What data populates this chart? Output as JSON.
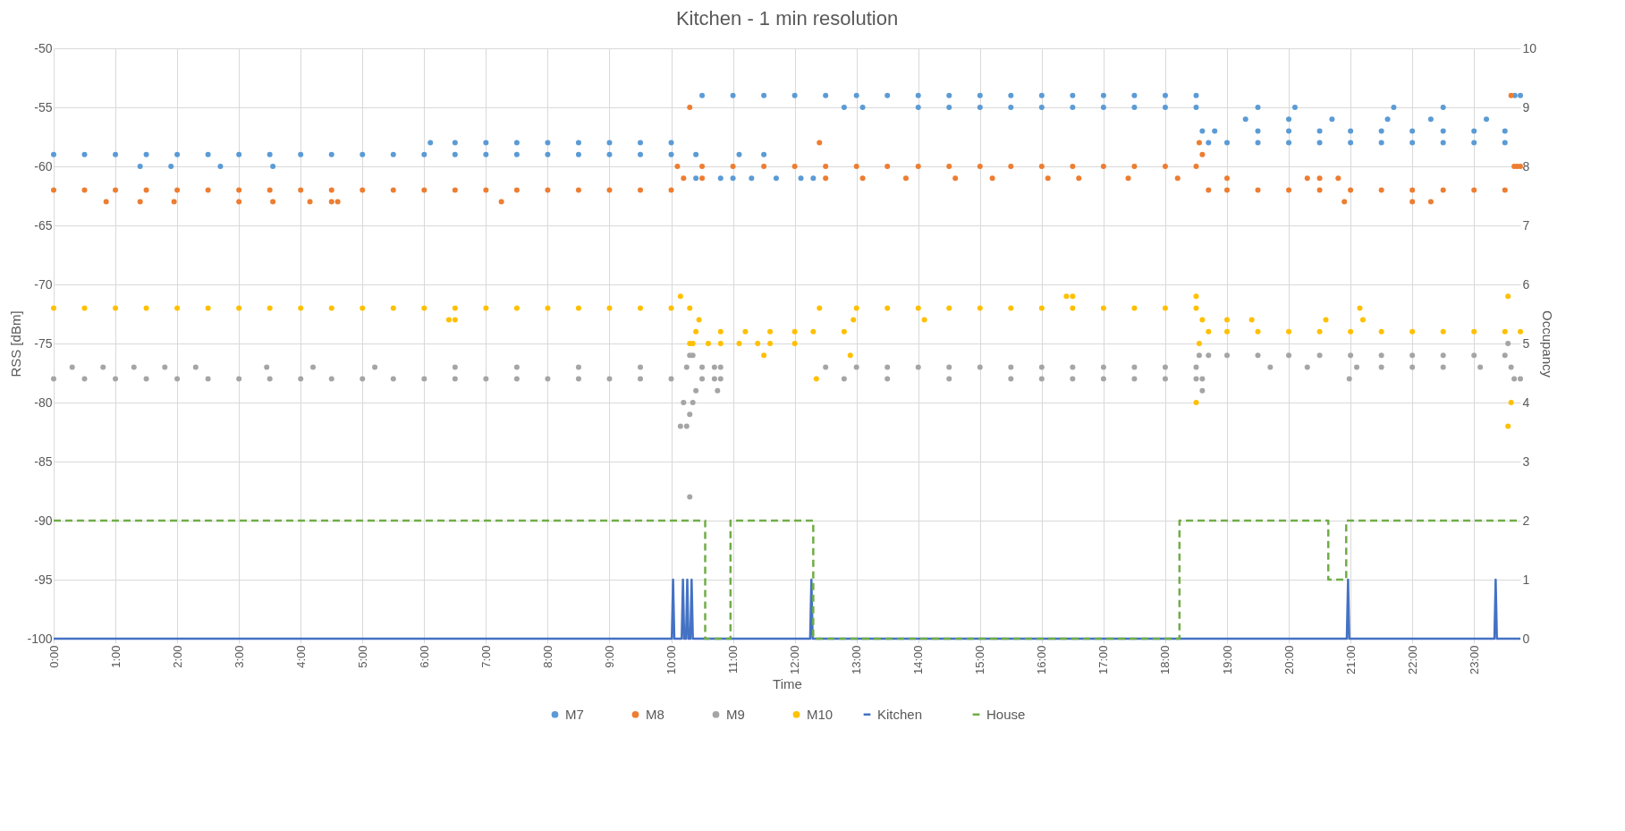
{
  "chart_data": {
    "type": "scatter",
    "title": "Kitchen - 1 min resolution",
    "xlabel": "Time",
    "ylabel": "RSS [dBm]",
    "y2label": "Occupancy",
    "xlim": [
      0,
      23.75
    ],
    "xticks": [
      {
        "value": 0,
        "label": "0:00"
      },
      {
        "value": 1,
        "label": "1:00"
      },
      {
        "value": 2,
        "label": "2:00"
      },
      {
        "value": 3,
        "label": "3:00"
      },
      {
        "value": 4,
        "label": "4:00"
      },
      {
        "value": 5,
        "label": "5:00"
      },
      {
        "value": 6,
        "label": "6:00"
      },
      {
        "value": 7,
        "label": "7:00"
      },
      {
        "value": 8,
        "label": "8:00"
      },
      {
        "value": 9,
        "label": "9:00"
      },
      {
        "value": 10,
        "label": "10:00"
      },
      {
        "value": 11,
        "label": "11:00"
      },
      {
        "value": 12,
        "label": "12:00"
      },
      {
        "value": 13,
        "label": "13:00"
      },
      {
        "value": 14,
        "label": "14:00"
      },
      {
        "value": 15,
        "label": "15:00"
      },
      {
        "value": 16,
        "label": "16:00"
      },
      {
        "value": 17,
        "label": "17:00"
      },
      {
        "value": 18,
        "label": "18:00"
      },
      {
        "value": 19,
        "label": "19:00"
      },
      {
        "value": 20,
        "label": "20:00"
      },
      {
        "value": 21,
        "label": "21:00"
      },
      {
        "value": 22,
        "label": "22:00"
      },
      {
        "value": 23,
        "label": "23:00"
      }
    ],
    "ylim": [
      -100,
      -50
    ],
    "yticks": [
      -100,
      -95,
      -90,
      -85,
      -80,
      -75,
      -70,
      -65,
      -60,
      -55,
      -50
    ],
    "y2lim": [
      0,
      10
    ],
    "y2ticks": [
      0,
      1,
      2,
      3,
      4,
      5,
      6,
      7,
      8,
      9,
      10
    ],
    "grid": true,
    "legend": "bottom",
    "marker": "circle",
    "series": [
      {
        "name": "M7",
        "color": "#5b9bd5",
        "x": [
          0,
          0.5,
          1,
          1.5,
          2,
          2.5,
          3,
          3.5,
          4,
          4.5,
          5,
          5.5,
          6,
          6.5,
          7,
          7.5,
          8,
          8.5,
          9,
          9.5,
          10,
          10.4,
          1.4,
          1.9,
          2.7,
          3.55,
          6.1,
          6.5,
          7,
          7.5,
          8,
          8.5,
          9,
          9.5,
          10,
          10.5,
          11,
          11.5,
          12,
          12.5,
          13,
          13.5,
          14,
          14.5,
          15,
          15.5,
          16,
          16.5,
          17,
          17.5,
          18,
          18.5,
          12.8,
          13.1,
          14,
          14.5,
          15,
          15.5,
          16,
          16.5,
          17,
          17.5,
          18,
          18.5,
          10.4,
          10.8,
          11,
          11.3,
          11.7,
          12.1,
          12.3,
          11.1,
          11.5,
          18.6,
          18.8,
          19.5,
          20,
          20.5,
          21,
          21.5,
          22,
          22.5,
          23,
          23.5,
          18.7,
          19,
          19.5,
          20,
          20.5,
          21,
          21.5,
          22,
          22.5,
          23,
          23.5,
          19.3,
          20,
          20.7,
          21.6,
          22.3,
          23.2,
          19.5,
          20.1,
          21.7,
          22.5,
          23.66,
          23.75
        ],
        "values": [
          -59,
          -59,
          -59,
          -59,
          -59,
          -59,
          -59,
          -59,
          -59,
          -59,
          -59,
          -59,
          -59,
          -59,
          -59,
          -59,
          -59,
          -59,
          -59,
          -59,
          -59,
          -59,
          -60,
          -60,
          -60,
          -60,
          -58,
          -58,
          -58,
          -58,
          -58,
          -58,
          -58,
          -58,
          -58,
          -54,
          -54,
          -54,
          -54,
          -54,
          -54,
          -54,
          -54,
          -54,
          -54,
          -54,
          -54,
          -54,
          -54,
          -54,
          -54,
          -54,
          -55,
          -55,
          -55,
          -55,
          -55,
          -55,
          -55,
          -55,
          -55,
          -55,
          -55,
          -55,
          -61,
          -61,
          -61,
          -61,
          -61,
          -61,
          -61,
          -59,
          -59,
          -57,
          -57,
          -57,
          -57,
          -57,
          -57,
          -57,
          -57,
          -57,
          -57,
          -57,
          -58,
          -58,
          -58,
          -58,
          -58,
          -58,
          -58,
          -58,
          -58,
          -58,
          -58,
          -56,
          -56,
          -56,
          -56,
          -56,
          -56,
          -55,
          -55,
          -55,
          -55,
          -54,
          -54
        ]
      },
      {
        "name": "M8",
        "color": "#ed7d31",
        "x": [
          0,
          0.5,
          1,
          1.5,
          2,
          2.5,
          3,
          3.5,
          4,
          4.5,
          5,
          5.5,
          6,
          6.5,
          7,
          7.5,
          8,
          8.5,
          9,
          9.5,
          10,
          0.85,
          1.4,
          1.95,
          3.0,
          3.55,
          4.15,
          4.5,
          4.6,
          7.25,
          10.1,
          10.5,
          11,
          11.5,
          12,
          12.5,
          13,
          13.5,
          14,
          14.5,
          15,
          15.5,
          16,
          16.5,
          17,
          17.5,
          18,
          18.5,
          10.2,
          10.5,
          12.5,
          13.1,
          13.8,
          14.6,
          15.2,
          16.1,
          16.6,
          17.4,
          18.2,
          19.0,
          10.3,
          12.4,
          18.55,
          18.6,
          18.7,
          19,
          19.5,
          20,
          20.5,
          21,
          21.5,
          22,
          22.5,
          23,
          23.5,
          20.3,
          20.5,
          20.8,
          20.9,
          22,
          22.3,
          23.6,
          23.65,
          23.7,
          23.75
        ],
        "values": [
          -62,
          -62,
          -62,
          -62,
          -62,
          -62,
          -62,
          -62,
          -62,
          -62,
          -62,
          -62,
          -62,
          -62,
          -62,
          -62,
          -62,
          -62,
          -62,
          -62,
          -62,
          -63,
          -63,
          -63,
          -63,
          -63,
          -63,
          -63,
          -63,
          -63,
          -60,
          -60,
          -60,
          -60,
          -60,
          -60,
          -60,
          -60,
          -60,
          -60,
          -60,
          -60,
          -60,
          -60,
          -60,
          -60,
          -60,
          -60,
          -61,
          -61,
          -61,
          -61,
          -61,
          -61,
          -61,
          -61,
          -61,
          -61,
          -61,
          -61,
          -55,
          -58,
          -58,
          -59,
          -62,
          -62,
          -62,
          -62,
          -62,
          -62,
          -62,
          -62,
          -62,
          -62,
          -62,
          -61,
          -61,
          -61,
          -63,
          -63,
          -63,
          -54,
          -60,
          -60,
          -60
        ]
      },
      {
        "name": "M9",
        "color": "#a5a5a5",
        "x": [
          0,
          0.5,
          1,
          1.5,
          2,
          2.5,
          3,
          3.5,
          4,
          4.5,
          5,
          5.5,
          6,
          6.5,
          7,
          7.5,
          8,
          8.5,
          9,
          9.5,
          10,
          0.3,
          0.8,
          1.3,
          1.8,
          2.3,
          3.45,
          4.2,
          5.2,
          6.5,
          7.5,
          8.5,
          9.5,
          10.15,
          10.25,
          10.2,
          10.3,
          10.35,
          10.4,
          10.3,
          10.35,
          10.3,
          10.25,
          10.5,
          10.7,
          10.8,
          10.5,
          10.7,
          10.8,
          10.75,
          12.5,
          13,
          13.5,
          14,
          14.5,
          15,
          15.5,
          16,
          16.5,
          17,
          17.5,
          18,
          18.5,
          12.8,
          13.5,
          14.5,
          15.5,
          16,
          16.5,
          17,
          17.5,
          18,
          18.5,
          18.55,
          18.6,
          18.6,
          18.7,
          19,
          19.5,
          20,
          20.5,
          21,
          21.5,
          22,
          22.5,
          23,
          23.5,
          19.7,
          20.3,
          21.1,
          21.5,
          22,
          22.5,
          23.1,
          20.98,
          23.55,
          23.6,
          23.65,
          23.75
        ],
        "values": [
          -78,
          -78,
          -78,
          -78,
          -78,
          -78,
          -78,
          -78,
          -78,
          -78,
          -78,
          -78,
          -78,
          -78,
          -78,
          -78,
          -78,
          -78,
          -78,
          -78,
          -78,
          -77,
          -77,
          -77,
          -77,
          -77,
          -77,
          -77,
          -77,
          -77,
          -77,
          -77,
          -77,
          -82,
          -82,
          -80,
          -81,
          -80,
          -79,
          -76,
          -76,
          -88,
          -77,
          -78,
          -78,
          -78,
          -77,
          -77,
          -77,
          -79,
          -77,
          -77,
          -77,
          -77,
          -77,
          -77,
          -77,
          -77,
          -77,
          -77,
          -77,
          -77,
          -77,
          -78,
          -78,
          -78,
          -78,
          -78,
          -78,
          -78,
          -78,
          -78,
          -78,
          -76,
          -79,
          -78,
          -76,
          -76,
          -76,
          -76,
          -76,
          -76,
          -76,
          -76,
          -76,
          -76,
          -76,
          -77,
          -77,
          -77,
          -77,
          -77,
          -77,
          -77,
          -78,
          -75,
          -77,
          -78,
          -78
        ]
      },
      {
        "name": "M10",
        "color": "#ffc000",
        "x": [
          0,
          0.5,
          1,
          1.5,
          2,
          2.5,
          3,
          3.5,
          4,
          4.5,
          5,
          5.5,
          6,
          6.5,
          7,
          7.5,
          8,
          8.5,
          9,
          9.5,
          10,
          10.3,
          6.4,
          6.5,
          10.15,
          10.3,
          10.35,
          10.45,
          10.4,
          10.8,
          11.2,
          11.6,
          12.0,
          12.3,
          10.6,
          10.8,
          11.1,
          11.4,
          11.6,
          12,
          11.5,
          12.35,
          12.8,
          12.95,
          12.9,
          12.4,
          13,
          13.5,
          14,
          14.5,
          15,
          15.5,
          16,
          16.5,
          17,
          17.5,
          18,
          18.5,
          14.1,
          16.4,
          16.5,
          18.5,
          18.5,
          18.6,
          18.55,
          18.7,
          19,
          19.5,
          20,
          20.5,
          21,
          21.5,
          22,
          22.5,
          23,
          23.5,
          19.0,
          19.4,
          20.6,
          21.2,
          21.15,
          23.6,
          23.55,
          23.55,
          23.75
        ],
        "values": [
          -72,
          -72,
          -72,
          -72,
          -72,
          -72,
          -72,
          -72,
          -72,
          -72,
          -72,
          -72,
          -72,
          -72,
          -72,
          -72,
          -72,
          -72,
          -72,
          -72,
          -72,
          -72,
          -73,
          -73,
          -71,
          -75,
          -75,
          -73,
          -74,
          -74,
          -74,
          -74,
          -74,
          -74,
          -75,
          -75,
          -75,
          -75,
          -75,
          -75,
          -76,
          -78,
          -74,
          -73,
          -76,
          -72,
          -72,
          -72,
          -72,
          -72,
          -72,
          -72,
          -72,
          -72,
          -72,
          -72,
          -72,
          -72,
          -73,
          -71,
          -71,
          -71,
          -80,
          -73,
          -75,
          -74,
          -74,
          -74,
          -74,
          -74,
          -74,
          -74,
          -74,
          -74,
          -74,
          -74,
          -73,
          -73,
          -73,
          -73,
          -72,
          -80,
          -82,
          -71,
          -74
        ]
      },
      {
        "name": "Kitchen",
        "type": "line",
        "axis": "y2",
        "line_style": "solid",
        "marker": "none",
        "color": "#4472c4",
        "x": [
          0,
          10.01,
          10.03,
          10.05,
          10.17,
          10.19,
          10.21,
          10.24,
          10.26,
          10.28,
          10.31,
          10.33,
          10.35,
          12.25,
          12.27,
          12.29,
          20.94,
          20.96,
          20.98,
          23.33,
          23.35,
          23.37,
          23.75
        ],
        "values": [
          0,
          0,
          1,
          0,
          0,
          1,
          0,
          0,
          1,
          0,
          0,
          1,
          0,
          0,
          1,
          0,
          0,
          1,
          0,
          0,
          1,
          0,
          0
        ]
      },
      {
        "name": "House",
        "type": "line",
        "axis": "y2",
        "line_style": "dashed",
        "marker": "none",
        "color": "#70ad47",
        "x": [
          0,
          10.55,
          10.55,
          10.96,
          10.96,
          12.3,
          12.3,
          18.23,
          18.23,
          20.64,
          20.64,
          20.93,
          20.93,
          23.75
        ],
        "values": [
          2,
          2,
          0,
          0,
          2,
          2,
          0,
          0,
          2,
          2,
          1,
          1,
          2,
          2
        ]
      }
    ]
  }
}
